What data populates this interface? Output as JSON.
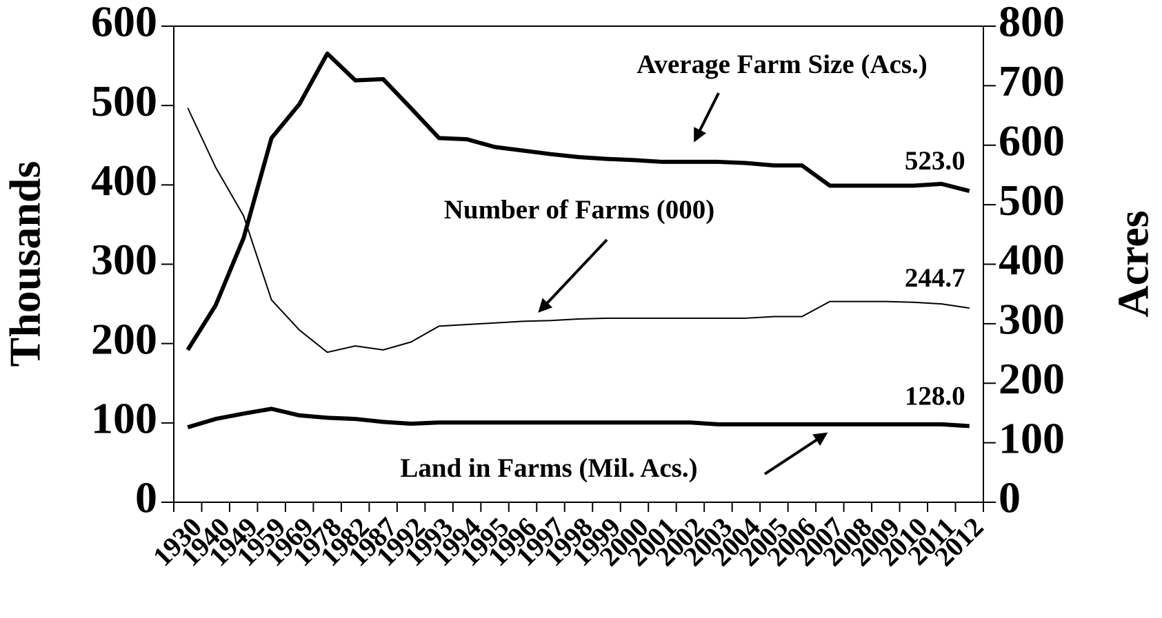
{
  "chart_data": {
    "type": "line",
    "categories": [
      "1930",
      "1940",
      "1949",
      "1959",
      "1969",
      "1978",
      "1982",
      "1987",
      "1992",
      "1993",
      "1994",
      "1995",
      "1996",
      "1997",
      "1998",
      "1999",
      "2000",
      "2001",
      "2002",
      "2003",
      "2004",
      "2005",
      "2006",
      "2007",
      "2008",
      "2009",
      "2010",
      "2011",
      "2012"
    ],
    "ylabel": "Thousands",
    "y2label": "Acres",
    "ylim": [
      0,
      600
    ],
    "yticks": [
      0,
      100,
      200,
      300,
      400,
      500,
      600
    ],
    "y2lim": [
      0,
      800
    ],
    "y2ticks": [
      0,
      100,
      200,
      300,
      400,
      500,
      600,
      700,
      800
    ],
    "series": [
      {
        "name": "Average Farm Size (Acs.)",
        "color": "#000000",
        "axis": "y2",
        "width": "thick",
        "values": [
          256,
          331,
          444,
          612,
          669,
          754,
          709,
          711,
          662,
          612,
          610,
          597,
          591,
          585,
          580,
          577,
          575,
          572,
          572,
          572,
          570,
          566,
          566,
          532,
          532,
          532,
          532,
          535,
          523.0
        ],
        "value_labels": [
          null,
          null,
          null,
          null,
          null,
          null,
          null,
          null,
          null,
          null,
          null,
          null,
          null,
          null,
          null,
          null,
          null,
          null,
          null,
          null,
          null,
          null,
          null,
          null,
          null,
          null,
          null,
          null,
          "523.0"
        ]
      },
      {
        "name": "Number of Farms (000)",
        "color": "#000000",
        "width": "thin",
        "values": [
          497,
          422,
          361,
          255,
          217,
          189,
          197,
          192,
          202,
          222,
          224,
          226,
          228,
          229,
          231,
          232,
          232,
          232,
          232,
          232,
          232,
          234,
          234,
          253,
          253,
          253,
          252,
          250,
          244.7
        ],
        "value_labels": [
          null,
          null,
          null,
          null,
          null,
          null,
          null,
          null,
          null,
          null,
          null,
          null,
          null,
          null,
          null,
          null,
          null,
          null,
          null,
          null,
          null,
          null,
          null,
          null,
          null,
          null,
          null,
          null,
          "244.7"
        ]
      },
      {
        "name": "Land in Farms (Mil. Acs.)",
        "color": "#000000",
        "axis": "y2",
        "width": "thick",
        "values": [
          126,
          140,
          149,
          157,
          146,
          142,
          140,
          135,
          132,
          134,
          134,
          134,
          134,
          134,
          134,
          134,
          134,
          134,
          134,
          131,
          131,
          131,
          131,
          131,
          131,
          131,
          131,
          131,
          128.0
        ],
        "value_labels": [
          null,
          null,
          null,
          null,
          null,
          null,
          null,
          null,
          null,
          null,
          null,
          null,
          null,
          null,
          null,
          null,
          null,
          null,
          null,
          null,
          null,
          null,
          null,
          null,
          null,
          null,
          null,
          null,
          "128.0"
        ]
      }
    ]
  }
}
